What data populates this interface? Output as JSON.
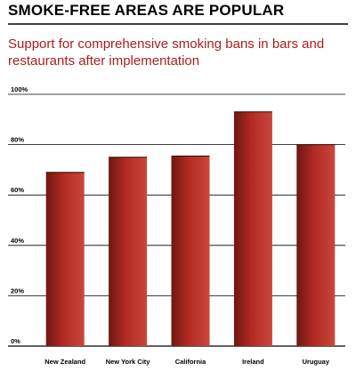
{
  "title": "SMOKE-FREE AREAS ARE POPULAR",
  "subtitle": "Support for comprehensive smoking bans in bars and restaurants after implementation",
  "colors": {
    "title_rule": "#000000",
    "subtitle": "#a8201a",
    "bar_dark": "#6e1712",
    "bar_mid": "#b22a22",
    "bar_light": "#c9473c",
    "axis": "#000000"
  },
  "chart_data": {
    "type": "bar",
    "title": "SMOKE-FREE AREAS ARE POPULAR",
    "subtitle": "Support for comprehensive smoking bans in bars and restaurants after implementation",
    "categories": [
      "New Zealand",
      "New York City",
      "California",
      "Ireland",
      "Uruguay"
    ],
    "values": [
      69,
      75,
      75.5,
      93,
      80
    ],
    "yticks": [
      "0%",
      "20%",
      "40%",
      "60%",
      "80%",
      "100%"
    ],
    "ytick_values": [
      0,
      20,
      40,
      60,
      80,
      100
    ],
    "ylim": [
      0,
      100
    ],
    "grid": true,
    "legend": "none"
  }
}
